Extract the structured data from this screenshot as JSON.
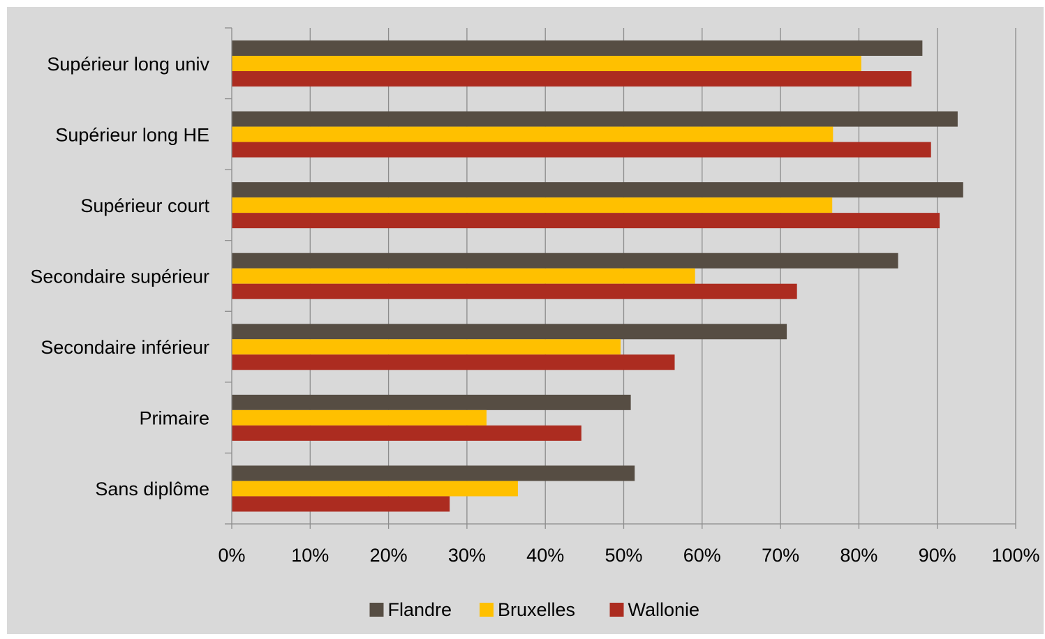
{
  "chart_data": {
    "type": "bar",
    "orientation": "horizontal",
    "title": "",
    "xlabel": "",
    "ylabel": "",
    "categories": [
      "Supérieur long univ",
      "Supérieur long HE",
      "Supérieur court",
      "Secondaire supérieur",
      "Secondaire inférieur",
      "Primaire",
      "Sans diplôme"
    ],
    "series": [
      {
        "name": "Flandre",
        "color": "#564d43",
        "values": [
          0.881,
          0.926,
          0.933,
          0.85,
          0.708,
          0.509,
          0.514
        ]
      },
      {
        "name": "Bruxelles",
        "color": "#ffc000",
        "values": [
          0.803,
          0.767,
          0.766,
          0.591,
          0.496,
          0.325,
          0.365
        ]
      },
      {
        "name": "Wallonie",
        "color": "#ac2c20",
        "values": [
          0.867,
          0.892,
          0.903,
          0.721,
          0.565,
          0.446,
          0.278
        ]
      }
    ],
    "xlim": [
      0,
      1
    ],
    "xticks": [
      "0%",
      "10%",
      "20%",
      "30%",
      "40%",
      "50%",
      "60%",
      "70%",
      "80%",
      "90%",
      "100%"
    ],
    "grid": true,
    "legend": "bottom",
    "background_color": "#d9d9d9"
  }
}
